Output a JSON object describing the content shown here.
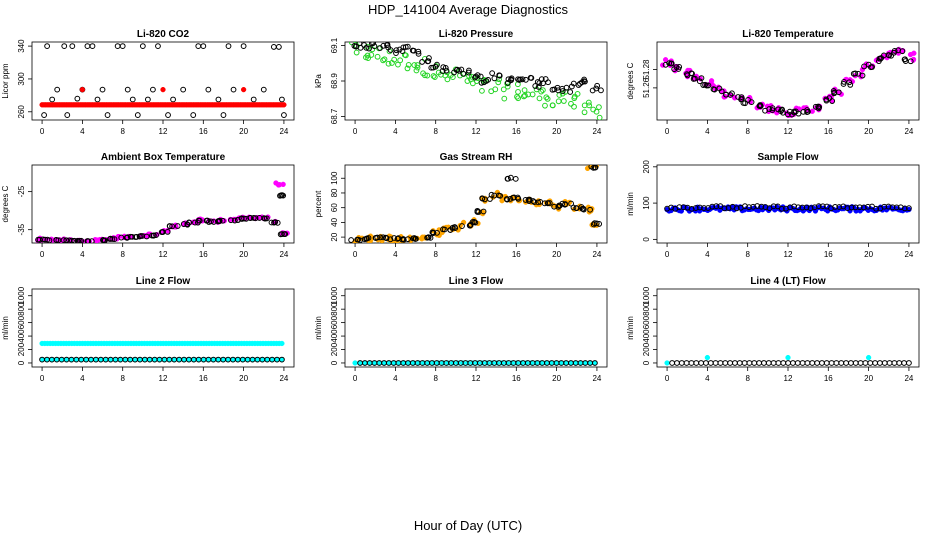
{
  "page": {
    "title": "HDP_141004  Average Diagnostics",
    "xlabel": "Hour of Day (UTC)"
  },
  "chart_data": [
    {
      "type": "scatter",
      "title": "Li-820 CO2",
      "ylabel": "Licor ppm",
      "xlabel": "",
      "xlim": [
        -1,
        25
      ],
      "xticks": [
        0,
        4,
        8,
        12,
        16,
        20,
        24
      ],
      "ylim": [
        250,
        345
      ],
      "yticks": [
        260,
        300,
        340
      ],
      "yticklabels": [
        "260",
        "300",
        "340"
      ],
      "series": [
        {
          "name": "open circles",
          "color": "#000000",
          "marker": "open",
          "x": [
            0.5,
            2.2,
            3.0,
            4.5,
            5.0,
            7.5,
            8.0,
            10.0,
            11.5,
            15.5,
            16.0,
            18.5,
            20.0,
            23.0,
            23.5,
            1.0,
            3.5,
            5.5,
            9.0,
            10.5,
            13.0,
            17.5,
            21.0,
            23.8,
            1.5,
            4.0,
            6.0,
            8.5,
            11.0,
            14.0,
            16.5,
            19.0,
            22.0,
            0.2,
            2.5,
            6.5,
            9.5,
            12.5,
            15.0,
            18.0,
            24.0
          ],
          "y": [
            340,
            340,
            340,
            340,
            340,
            340,
            340,
            340,
            340,
            340,
            340,
            340,
            340,
            339,
            339,
            275,
            276,
            275,
            275,
            275,
            275,
            275,
            275,
            275,
            287,
            287,
            287,
            287,
            287,
            287,
            287,
            287,
            287,
            256,
            256,
            256,
            256,
            256,
            256,
            256,
            256
          ]
        },
        {
          "name": "filled red",
          "color": "#ff0000",
          "marker": "filled",
          "x_start": 0,
          "x_end": 24,
          "count": 140,
          "y": 268.5
        },
        {
          "name": "red outliers",
          "color": "#ff0000",
          "marker": "filled",
          "x": [
            4.0,
            12.0,
            20.0
          ],
          "y": [
            287,
            287,
            287
          ]
        }
      ]
    },
    {
      "type": "scatter",
      "title": "Li-820 Pressure",
      "ylabel": "kPa",
      "xlabel": "",
      "xlim": [
        -1,
        25
      ],
      "xticks": [
        0,
        4,
        8,
        12,
        16,
        20,
        24
      ],
      "ylim": [
        68.68,
        69.12
      ],
      "yticks": [
        68.7,
        68.9,
        69.1
      ],
      "yticklabels": [
        "68.7",
        "68.9",
        "69.1"
      ],
      "series": [
        {
          "name": "green crosses",
          "color": "#22d422",
          "marker": "open",
          "x": [
            0,
            1,
            2,
            3,
            4,
            5,
            6,
            7,
            8,
            9,
            10,
            11,
            12,
            13,
            14,
            15,
            16,
            17,
            18,
            19,
            20,
            21,
            22,
            23,
            24
          ],
          "y": [
            69.08,
            69.06,
            69.05,
            69.03,
            69.02,
            69.01,
            69.0,
            68.98,
            68.95,
            68.93,
            68.92,
            68.91,
            68.88,
            68.87,
            68.86,
            68.85,
            68.84,
            68.83,
            68.82,
            68.81,
            68.8,
            68.79,
            68.78,
            68.76,
            68.74
          ],
          "spread": 0.05
        },
        {
          "name": "black circles",
          "color": "#000000",
          "marker": "open",
          "x": [
            0,
            1,
            2,
            3,
            4,
            5,
            6,
            7,
            8,
            9,
            10,
            11,
            12,
            13,
            14,
            15,
            16,
            17,
            18,
            19,
            20,
            21,
            22,
            23,
            24
          ],
          "y": [
            69.1,
            69.09,
            69.1,
            69.09,
            69.07,
            69.08,
            69.06,
            69.02,
            68.98,
            68.97,
            68.96,
            68.95,
            68.92,
            68.9,
            68.93,
            68.9,
            68.91,
            68.92,
            68.88,
            68.9,
            68.86,
            68.85,
            68.88,
            68.9,
            68.86
          ],
          "spread": 0.015
        }
      ]
    },
    {
      "type": "scatter",
      "title": "Li-820 Temperature",
      "ylabel": "degrees C",
      "xlabel": "",
      "xlim": [
        -1,
        25
      ],
      "xticks": [
        0,
        4,
        8,
        12,
        16,
        20,
        24
      ],
      "ylim": [
        51.225,
        51.31
      ],
      "yticks": [
        51.26,
        51.28
      ],
      "yticklabels": [
        "51.26",
        "51.28"
      ],
      "series": [
        {
          "name": "magenta",
          "color": "#ff00ff",
          "marker": "filled",
          "x": [
            0,
            1,
            2,
            3,
            4,
            5,
            6,
            7,
            8,
            9,
            10,
            11,
            12,
            13,
            14,
            15,
            16,
            17,
            18,
            19,
            20,
            21,
            22,
            23,
            24
          ],
          "y": [
            51.287,
            51.282,
            51.276,
            51.27,
            51.264,
            51.259,
            51.254,
            51.25,
            51.246,
            51.242,
            51.238,
            51.236,
            51.234,
            51.234,
            51.236,
            51.24,
            51.248,
            51.256,
            51.266,
            51.276,
            51.285,
            51.292,
            51.296,
            51.298,
            51.294
          ],
          "spread": 0.004
        },
        {
          "name": "black circles",
          "color": "#000000",
          "marker": "open",
          "x": [
            0,
            1,
            2,
            3,
            4,
            5,
            6,
            7,
            8,
            9,
            10,
            11,
            12,
            13,
            14,
            15,
            16,
            17,
            18,
            19,
            20,
            21,
            22,
            23,
            24
          ],
          "y": [
            51.286,
            51.281,
            51.275,
            51.269,
            51.263,
            51.258,
            51.253,
            51.249,
            51.245,
            51.241,
            51.237,
            51.235,
            51.233,
            51.233,
            51.235,
            51.239,
            51.247,
            51.255,
            51.265,
            51.275,
            51.284,
            51.291,
            51.297,
            51.3,
            51.29
          ],
          "spread": 0.002
        }
      ]
    },
    {
      "type": "scatter",
      "title": "Ambient Box Temperature",
      "ylabel": "degrees C",
      "xlabel": "",
      "xlim": [
        -1,
        25
      ],
      "xticks": [
        0,
        4,
        8,
        12,
        16,
        20,
        24
      ],
      "ylim": [
        -38.5,
        -18
      ],
      "yticks": [
        -35,
        -25
      ],
      "yticklabels": [
        "-35",
        "-25"
      ],
      "series": [
        {
          "name": "magenta",
          "color": "#ff00ff",
          "marker": "filled",
          "x": [
            0,
            1,
            2,
            3,
            4,
            5,
            6,
            7,
            8,
            9,
            10,
            11,
            12,
            13,
            14,
            15,
            16,
            17,
            18,
            19,
            20,
            21,
            22,
            23,
            23.5,
            24
          ],
          "y": [
            -37.5,
            -37.6,
            -37.7,
            -37.8,
            -37.9,
            -37.9,
            -37.7,
            -37.3,
            -37.0,
            -36.8,
            -36.6,
            -36.4,
            -35.5,
            -34.0,
            -33.5,
            -33.0,
            -32.5,
            -32.8,
            -32.6,
            -32.4,
            -32.0,
            -31.8,
            -31.9,
            -33.0,
            -23.0,
            -36.0
          ],
          "spread": 0.3
        },
        {
          "name": "black circles",
          "color": "#000000",
          "marker": "open",
          "x": [
            0,
            1,
            2,
            3,
            4,
            5,
            6,
            7,
            8,
            9,
            10,
            11,
            12,
            13,
            14,
            15,
            16,
            17,
            18,
            19,
            20,
            21,
            22,
            23,
            23.5,
            24
          ],
          "y": [
            -37.6,
            -37.7,
            -37.8,
            -37.9,
            -38.0,
            -38.0,
            -37.8,
            -37.4,
            -37.1,
            -36.9,
            -36.7,
            -36.5,
            -35.6,
            -34.1,
            -33.6,
            -33.1,
            -32.6,
            -32.9,
            -32.7,
            -32.5,
            -32.1,
            -31.9,
            -32.0,
            -33.1,
            -26.0,
            -36.2
          ],
          "spread": 0.1
        }
      ]
    },
    {
      "type": "scatter",
      "title": "Gas Stream RH",
      "ylabel": "percent",
      "xlabel": "",
      "xlim": [
        -1,
        25
      ],
      "xticks": [
        0,
        4,
        8,
        12,
        16,
        20,
        24
      ],
      "ylim": [
        12,
        118
      ],
      "yticks": [
        20,
        40,
        60,
        80,
        100
      ],
      "yticklabels": [
        "20",
        "40",
        "60",
        "80",
        "100"
      ],
      "series": [
        {
          "name": "orange",
          "color": "#ffa500",
          "marker": "filled",
          "x": [
            0,
            1,
            2,
            3,
            4,
            5,
            6,
            7,
            8,
            9,
            10,
            11,
            12,
            12.5,
            13,
            14,
            15,
            16,
            17,
            18,
            19,
            20,
            21,
            22,
            23,
            23.5,
            24
          ],
          "y": [
            16,
            18,
            19,
            19,
            18,
            17,
            18,
            20,
            26,
            30,
            33,
            36,
            40,
            55,
            72,
            77,
            72,
            73,
            70,
            68,
            66,
            62,
            65,
            60,
            58,
            115,
            38
          ],
          "spread": 4
        },
        {
          "name": "black circles",
          "color": "#000000",
          "marker": "open",
          "x": [
            0,
            1,
            2,
            3,
            4,
            5,
            6,
            7,
            8,
            9,
            10,
            11,
            12,
            12.5,
            13,
            14,
            15,
            15.5,
            16,
            17,
            18,
            19,
            20,
            21,
            22,
            23,
            23.5,
            24
          ],
          "y": [
            16,
            18,
            19,
            19,
            18,
            17,
            18,
            20,
            26,
            30,
            33,
            36,
            40,
            55,
            72,
            77,
            72,
            100,
            73,
            70,
            68,
            66,
            62,
            65,
            60,
            58,
            115,
            38
          ],
          "spread": 1
        }
      ]
    },
    {
      "type": "scatter",
      "title": "Sample Flow",
      "ylabel": "ml/min",
      "xlabel": "",
      "xlim": [
        -1,
        25
      ],
      "xticks": [
        0,
        4,
        8,
        12,
        16,
        20,
        24
      ],
      "ylim": [
        -10,
        205
      ],
      "yticks": [
        0,
        100,
        200
      ],
      "yticklabels": [
        "0",
        "100",
        "200"
      ],
      "series": [
        {
          "name": "blue",
          "color": "#0000ff",
          "marker": "filled",
          "x_start": 0,
          "x_end": 24,
          "count": 120,
          "y": 84,
          "spread": 6
        },
        {
          "name": "black circles",
          "color": "#000000",
          "marker": "open",
          "x_start": 0,
          "x_end": 24,
          "count": 60,
          "y": 88,
          "spread": 4
        }
      ]
    },
    {
      "type": "scatter",
      "title": "Line 2 Flow",
      "ylabel": "ml/min",
      "xlabel": "",
      "xlim": [
        -1,
        25
      ],
      "xticks": [
        0,
        4,
        8,
        12,
        16,
        20,
        24
      ],
      "ylim": [
        -60,
        1100
      ],
      "yticks": [
        0,
        200,
        400,
        600,
        800,
        1000
      ],
      "yticklabels": [
        "0",
        "200",
        "400",
        "600",
        "800",
        "1000"
      ],
      "series": [
        {
          "name": "cyan",
          "color": "#00ffff",
          "marker": "filled",
          "x_start": 0,
          "x_end": 23.8,
          "count": 90,
          "y": 290
        },
        {
          "name": "cyan lower",
          "color": "#00ffff",
          "marker": "filled",
          "x_start": 0,
          "x_end": 23.8,
          "count": 50,
          "y": 50
        },
        {
          "name": "black circles",
          "color": "#000000",
          "marker": "open",
          "x_start": 0,
          "x_end": 23.8,
          "count": 50,
          "y": 50
        }
      ]
    },
    {
      "type": "scatter",
      "title": "Line 3 Flow",
      "ylabel": "ml/min",
      "xlabel": "",
      "xlim": [
        -1,
        25
      ],
      "xticks": [
        0,
        4,
        8,
        12,
        16,
        20,
        24
      ],
      "ylim": [
        -60,
        1100
      ],
      "yticks": [
        0,
        200,
        400,
        600,
        800,
        1000
      ],
      "yticklabels": [
        "0",
        "200",
        "400",
        "600",
        "800",
        "1000"
      ],
      "series": [
        {
          "name": "cyan",
          "color": "#00ffff",
          "marker": "filled",
          "x_start": 0,
          "x_end": 23.8,
          "count": 50,
          "y": 0
        },
        {
          "name": "black circles",
          "color": "#000000",
          "marker": "open",
          "x_start": 0.5,
          "x_end": 23.8,
          "count": 50,
          "y": 0
        }
      ]
    },
    {
      "type": "scatter",
      "title": "Line 4 (LT) Flow",
      "ylabel": "ml/min",
      "xlabel": "",
      "xlim": [
        -1,
        25
      ],
      "xticks": [
        0,
        4,
        8,
        12,
        16,
        20,
        24
      ],
      "ylim": [
        -60,
        1100
      ],
      "yticks": [
        0,
        200,
        400,
        600,
        800,
        1000
      ],
      "yticklabels": [
        "0",
        "200",
        "400",
        "600",
        "800",
        "1000"
      ],
      "series": [
        {
          "name": "cyan",
          "color": "#00ffff",
          "marker": "filled",
          "x": [
            0,
            4,
            12,
            20
          ],
          "y": [
            0,
            80,
            80,
            80
          ]
        },
        {
          "name": "black circles",
          "color": "#000000",
          "marker": "open",
          "x_start": 0.5,
          "x_end": 24,
          "count": 50,
          "y": 0
        }
      ]
    }
  ]
}
